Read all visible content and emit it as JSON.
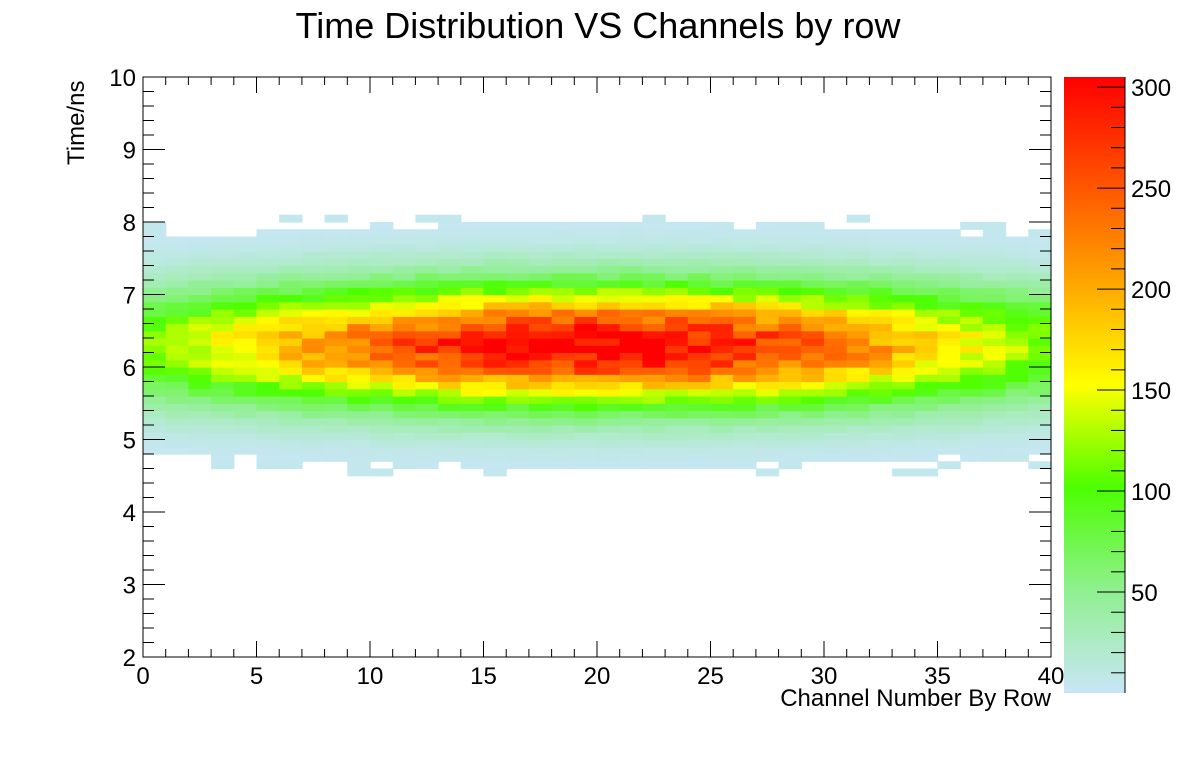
{
  "chart_data": {
    "type": "heatmap",
    "title": "Time Distribution VS Channels by row",
    "xlabel": "Channel Number By Row",
    "ylabel": "Time/ns",
    "xlim": [
      0,
      40
    ],
    "ylim": [
      2,
      10
    ],
    "x_ticks": [
      "0",
      "5",
      "10",
      "15",
      "20",
      "25",
      "30",
      "35",
      "40"
    ],
    "y_ticks": [
      "2",
      "3",
      "4",
      "5",
      "6",
      "7",
      "8",
      "9",
      "10"
    ],
    "colorbar": {
      "min": 0,
      "max": 305,
      "ticks": [
        "50",
        "100",
        "150",
        "200",
        "250",
        "300"
      ],
      "colors": [
        "#c9e6f8",
        "#8ff08f",
        "#4cff00",
        "#ffff00",
        "#ffa500",
        "#ff5000",
        "#ff0000"
      ]
    },
    "bins": {
      "x_count": 40,
      "y_count": 80,
      "x_width": 1,
      "y_width": 0.1
    },
    "distribution": {
      "description_values": {
        "peak_channel": 20,
        "peak_time_ns": 6.3,
        "time_sigma_ns": 0.55,
        "channel_sigma": 10.5,
        "peak_count": 305
      }
    }
  }
}
